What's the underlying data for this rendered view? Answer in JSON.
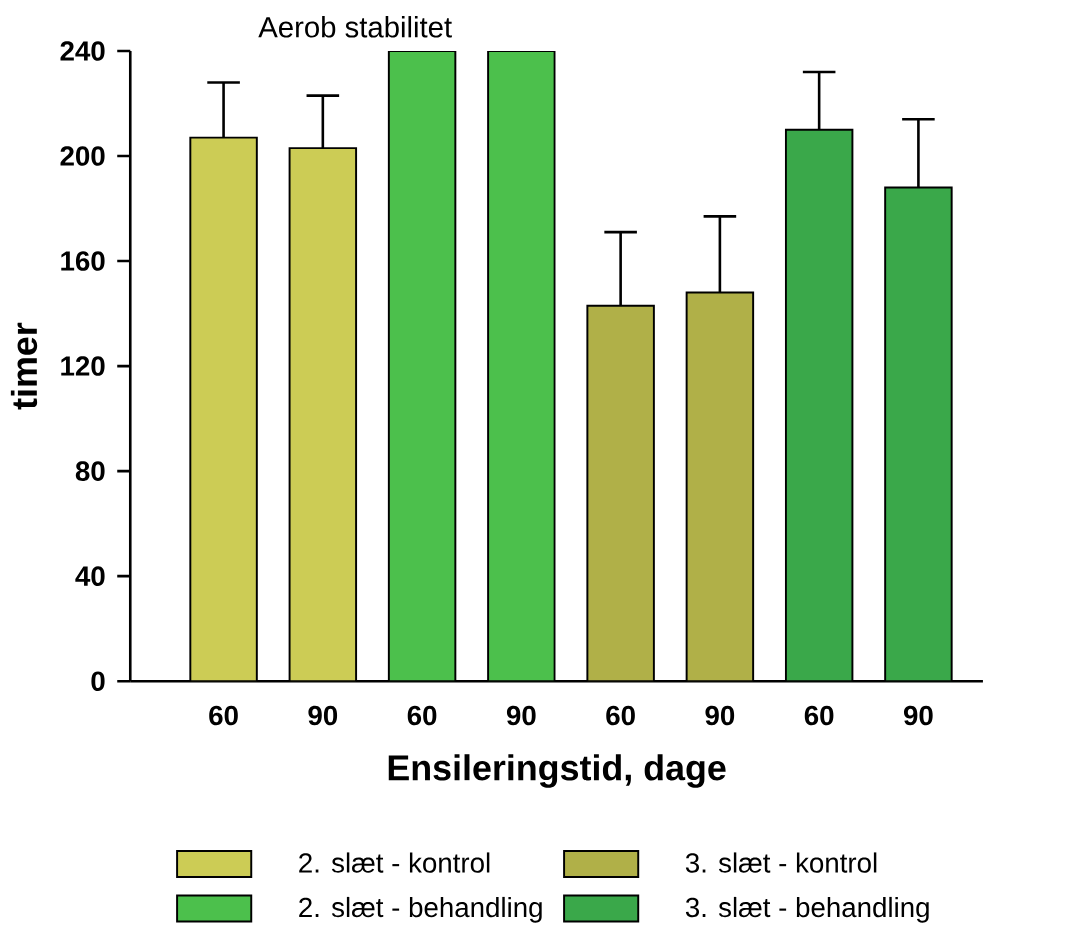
{
  "chart_data": {
    "type": "bar",
    "title": "Aerob stabilitet",
    "xlabel": "Ensileringstid, dage",
    "ylabel": "timer",
    "categories": [
      "60",
      "90",
      "60",
      "90",
      "60",
      "90",
      "60",
      "90"
    ],
    "series": [
      {
        "name": "2. slæt - kontrol",
        "color": "#cccc55",
        "values": [
          207,
          203,
          null,
          null,
          null,
          null,
          null,
          null
        ],
        "errors": [
          21,
          20,
          null,
          null,
          null,
          null,
          null,
          null
        ]
      },
      {
        "name": "2. slæt - behandling",
        "color": "#4cc04c",
        "values": [
          null,
          null,
          240,
          240,
          null,
          null,
          null,
          null
        ],
        "errors": [
          null,
          null,
          null,
          null,
          null,
          null,
          null,
          null
        ]
      },
      {
        "name": "3. slæt - kontrol",
        "color": "#b0b048",
        "values": [
          null,
          null,
          null,
          null,
          143,
          148,
          null,
          null
        ],
        "errors": [
          null,
          null,
          null,
          null,
          28,
          29,
          null,
          null
        ]
      },
      {
        "name": "3. slæt - behandling",
        "color": "#3aa84a",
        "values": [
          null,
          null,
          null,
          null,
          null,
          null,
          210,
          188
        ],
        "errors": [
          null,
          null,
          null,
          null,
          null,
          null,
          22,
          26
        ]
      }
    ],
    "ylim": [
      0,
      240
    ],
    "yticks": [
      0,
      40,
      80,
      120,
      160,
      200,
      240
    ],
    "legend": "bottom",
    "grid": false
  }
}
